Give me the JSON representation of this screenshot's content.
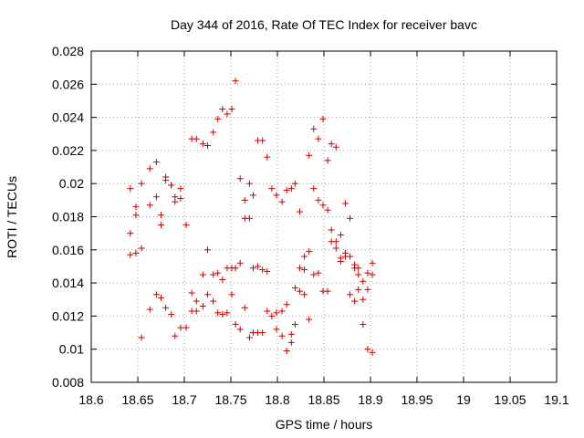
{
  "chart_data": {
    "type": "scatter",
    "title": "Day 344 of 2016, Rate Of TEC Index for receiver bavc",
    "xlabel": "GPS time / hours",
    "ylabel": "ROTI / TECUs",
    "xlim": [
      18.6,
      19.1
    ],
    "ylim": [
      0.008,
      0.028
    ],
    "x_ticks": [
      "18.6",
      "18.65",
      "18.7",
      "18.75",
      "18.8",
      "18.85",
      "18.9",
      "18.95",
      "19",
      "19.05",
      "19.1"
    ],
    "y_ticks": [
      "0.008",
      "0.01",
      "0.012",
      "0.014",
      "0.016",
      "0.018",
      "0.02",
      "0.022",
      "0.024",
      "0.026",
      "0.028"
    ],
    "grid": true,
    "marker": "+",
    "color": "#cc0000",
    "series": [
      {
        "points": [
          [
            18.642,
            0.017
          ],
          [
            18.642,
            0.0197
          ],
          [
            18.642,
            0.0157
          ],
          [
            18.648,
            0.0181
          ],
          [
            18.648,
            0.0186
          ],
          [
            18.648,
            0.0158
          ],
          [
            18.654,
            0.02
          ],
          [
            18.654,
            0.0161
          ],
          [
            18.654,
            0.0107
          ],
          [
            18.663,
            0.0209
          ],
          [
            18.663,
            0.0187
          ],
          [
            18.663,
            0.0124
          ],
          [
            18.67,
            0.0213
          ],
          [
            18.67,
            0.0192
          ],
          [
            18.67,
            0.0133
          ],
          [
            18.675,
            0.0181
          ],
          [
            18.675,
            0.0175
          ],
          [
            18.675,
            0.0131
          ],
          [
            18.68,
            0.0204
          ],
          [
            18.68,
            0.0202
          ],
          [
            18.68,
            0.0125
          ],
          [
            18.686,
            0.0199
          ],
          [
            18.686,
            0.0199
          ],
          [
            18.686,
            0.0121
          ],
          [
            18.69,
            0.0192
          ],
          [
            18.69,
            0.0189
          ],
          [
            18.69,
            0.0108
          ],
          [
            18.696,
            0.0197
          ],
          [
            18.696,
            0.0191
          ],
          [
            18.696,
            0.0113
          ],
          [
            18.702,
            0.0175
          ],
          [
            18.702,
            0.0113
          ],
          [
            18.708,
            0.0227
          ],
          [
            18.708,
            0.0134
          ],
          [
            18.708,
            0.0123
          ],
          [
            18.713,
            0.0227
          ],
          [
            18.713,
            0.0129
          ],
          [
            18.713,
            0.0123
          ],
          [
            18.72,
            0.0224
          ],
          [
            18.72,
            0.0145
          ],
          [
            18.72,
            0.0126
          ],
          [
            18.725,
            0.0223
          ],
          [
            18.725,
            0.016
          ],
          [
            18.725,
            0.0133
          ],
          [
            18.731,
            0.0231
          ],
          [
            18.731,
            0.0145
          ],
          [
            18.731,
            0.0129
          ],
          [
            18.736,
            0.0239
          ],
          [
            18.736,
            0.0146
          ],
          [
            18.736,
            0.0122
          ],
          [
            18.741,
            0.0245
          ],
          [
            18.741,
            0.0142
          ],
          [
            18.741,
            0.0121
          ],
          [
            18.746,
            0.0242
          ],
          [
            18.746,
            0.0149
          ],
          [
            18.746,
            0.0122
          ],
          [
            18.751,
            0.0245
          ],
          [
            18.751,
            0.0149
          ],
          [
            18.751,
            0.0133
          ],
          [
            18.755,
            0.0262
          ],
          [
            18.755,
            0.0149
          ],
          [
            18.755,
            0.0115
          ],
          [
            18.76,
            0.0203
          ],
          [
            18.76,
            0.0152
          ],
          [
            18.76,
            0.0112
          ],
          [
            18.765,
            0.019
          ],
          [
            18.765,
            0.0179
          ],
          [
            18.765,
            0.0125
          ],
          [
            18.77,
            0.02
          ],
          [
            18.77,
            0.0179
          ],
          [
            18.77,
            0.0107
          ],
          [
            18.774,
            0.0193
          ],
          [
            18.774,
            0.0149
          ],
          [
            18.774,
            0.011
          ],
          [
            18.779,
            0.0226
          ],
          [
            18.779,
            0.015
          ],
          [
            18.779,
            0.011
          ],
          [
            18.784,
            0.0226
          ],
          [
            18.784,
            0.0148
          ],
          [
            18.784,
            0.011
          ],
          [
            18.789,
            0.0216
          ],
          [
            18.789,
            0.0147
          ],
          [
            18.789,
            0.0123
          ],
          [
            18.794,
            0.0197
          ],
          [
            18.794,
            0.012
          ],
          [
            18.799,
            0.0193
          ],
          [
            18.799,
            0.0122
          ],
          [
            18.799,
            0.0112
          ],
          [
            18.805,
            0.0189
          ],
          [
            18.805,
            0.0123
          ],
          [
            18.805,
            0.0108
          ],
          [
            18.81,
            0.0196
          ],
          [
            18.81,
            0.0127
          ],
          [
            18.81,
            0.0099
          ],
          [
            18.815,
            0.0197
          ],
          [
            18.815,
            0.0109
          ],
          [
            18.815,
            0.0104
          ],
          [
            18.819,
            0.02
          ],
          [
            18.819,
            0.0137
          ],
          [
            18.819,
            0.0115
          ],
          [
            18.824,
            0.0183
          ],
          [
            18.824,
            0.0149
          ],
          [
            18.824,
            0.0135
          ],
          [
            18.829,
            0.0156
          ],
          [
            18.829,
            0.0148
          ],
          [
            18.829,
            0.0133
          ],
          [
            18.834,
            0.0217
          ],
          [
            18.834,
            0.0159
          ],
          [
            18.834,
            0.0118
          ],
          [
            18.839,
            0.0233
          ],
          [
            18.839,
            0.0197
          ],
          [
            18.839,
            0.0145
          ],
          [
            18.844,
            0.0227
          ],
          [
            18.844,
            0.019
          ],
          [
            18.844,
            0.0146
          ],
          [
            18.849,
            0.0239
          ],
          [
            18.849,
            0.0187
          ],
          [
            18.849,
            0.0135
          ],
          [
            18.854,
            0.0214
          ],
          [
            18.854,
            0.0184
          ],
          [
            18.854,
            0.0135
          ],
          [
            18.858,
            0.0224
          ],
          [
            18.858,
            0.0172
          ],
          [
            18.858,
            0.0165
          ],
          [
            18.863,
            0.0222
          ],
          [
            18.863,
            0.0165
          ],
          [
            18.863,
            0.0161
          ],
          [
            18.868,
            0.0169
          ],
          [
            18.868,
            0.0155
          ],
          [
            18.868,
            0.0153
          ],
          [
            18.873,
            0.0188
          ],
          [
            18.873,
            0.0158
          ],
          [
            18.873,
            0.0156
          ],
          [
            18.878,
            0.0179
          ],
          [
            18.878,
            0.0156
          ],
          [
            18.878,
            0.0133
          ],
          [
            18.883,
            0.0151
          ],
          [
            18.883,
            0.0149
          ],
          [
            18.883,
            0.0129
          ],
          [
            18.887,
            0.0149
          ],
          [
            18.887,
            0.0145
          ],
          [
            18.887,
            0.0136
          ],
          [
            18.892,
            0.0141
          ],
          [
            18.892,
            0.013
          ],
          [
            18.892,
            0.0115
          ],
          [
            18.897,
            0.0146
          ],
          [
            18.897,
            0.0136
          ],
          [
            18.897,
            0.01
          ],
          [
            18.902,
            0.0152
          ],
          [
            18.902,
            0.0145
          ],
          [
            18.902,
            0.0098
          ]
        ]
      }
    ]
  }
}
